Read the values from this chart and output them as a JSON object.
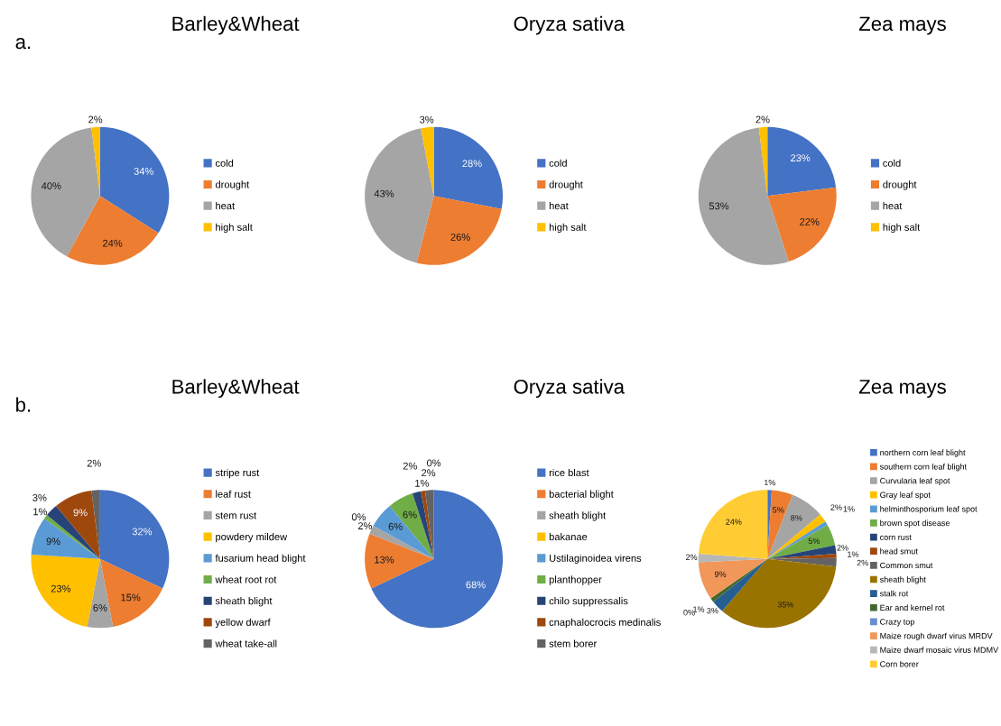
{
  "chart_data": [
    {
      "type": "pie",
      "title": "Barley&Wheat",
      "annotations": [
        "a."
      ],
      "categories": [
        "cold",
        "drought",
        "heat",
        "high salt"
      ],
      "values": [
        34,
        24,
        40,
        2
      ],
      "value_labels": [
        "34%",
        "24%",
        "40%",
        "2%"
      ],
      "colors": [
        "#4472c4",
        "#ed7d31",
        "#a5a5a5",
        "#ffc000"
      ],
      "legend": "right"
    },
    {
      "type": "pie",
      "title": "Oryza sativa",
      "categories": [
        "cold",
        "drought",
        "heat",
        "high salt"
      ],
      "values": [
        28,
        26,
        43,
        3
      ],
      "value_labels": [
        "28%",
        "26%",
        "43%",
        "3%"
      ],
      "colors": [
        "#4472c4",
        "#ed7d31",
        "#a5a5a5",
        "#ffc000"
      ],
      "legend": "right"
    },
    {
      "type": "pie",
      "title": "Zea mays",
      "categories": [
        "cold",
        "drought",
        "heat",
        "high salt"
      ],
      "values": [
        23,
        22,
        53,
        2
      ],
      "value_labels": [
        "23%",
        "22%",
        "53%",
        "2%"
      ],
      "colors": [
        "#4472c4",
        "#ed7d31",
        "#a5a5a5",
        "#ffc000"
      ],
      "legend": "right"
    },
    {
      "type": "pie",
      "title": "Barley&Wheat",
      "annotations": [
        "b."
      ],
      "categories": [
        "stripe rust",
        "leaf rust",
        "stem rust",
        "powdery mildew",
        "fusarium head blight",
        "wheat root rot",
        "sheath blight",
        "yellow dwarf",
        "wheat take-all"
      ],
      "values": [
        32,
        15,
        6,
        23,
        9,
        1,
        3,
        9,
        2
      ],
      "value_labels": [
        "32%",
        "15%",
        "6%",
        "23%",
        "9%",
        "1%",
        "3%",
        "9%",
        "2%"
      ],
      "colors": [
        "#4472c4",
        "#ed7d31",
        "#a5a5a5",
        "#ffc000",
        "#5b9bd5",
        "#70ad47",
        "#264478",
        "#9e480e",
        "#636363"
      ],
      "legend": "right"
    },
    {
      "type": "pie",
      "title": "Oryza sativa",
      "categories": [
        "rice blast",
        "bacterial blight",
        "sheath blight",
        "bakanae",
        "Ustilaginoidea virens",
        "planthopper",
        "chilo suppressalis",
        "cnaphalocrocis medinalis",
        "stem borer",
        null
      ],
      "values": [
        68,
        13,
        2,
        0,
        6,
        6,
        2,
        1,
        2,
        0
      ],
      "value_labels": [
        "68%",
        "13%",
        "2%",
        "0%",
        "6%",
        "6%",
        "2%",
        "1%",
        "2%",
        "0%"
      ],
      "colors": [
        "#4472c4",
        "#ed7d31",
        "#a5a5a5",
        "#ffc000",
        "#5b9bd5",
        "#70ad47",
        "#264478",
        "#9e480e",
        "#636363",
        "#997300"
      ],
      "legend": "right"
    },
    {
      "type": "pie",
      "title": "Zea mays",
      "categories": [
        "northern corn leaf blight",
        "southern corn leaf blight",
        "Curvularia leaf spot",
        "Gray leaf spot",
        "helminthosporium leaf spot",
        "brown spot disease",
        "corn rust",
        "head smut",
        "Common smut",
        "sheath blight",
        "stalk rot",
        "Ear and kernel rot",
        "Crazy top",
        "Maize rough dwarf virus MRDV",
        "Maize dwarf mosaic virus MDMV",
        "Corn borer"
      ],
      "values": [
        1,
        5,
        8,
        2,
        1,
        5,
        2,
        1,
        2,
        35,
        3,
        1,
        0,
        9,
        2,
        24
      ],
      "value_labels": [
        "1%",
        "5%",
        "8%",
        "2%",
        "1%",
        "5%",
        "2%",
        "1%",
        "2%",
        "35%",
        "3%",
        "1%",
        "0%",
        "9%",
        "2%",
        "24%"
      ],
      "colors": [
        "#4472c4",
        "#ed7d31",
        "#a5a5a5",
        "#ffc000",
        "#5b9bd5",
        "#70ad47",
        "#264478",
        "#9e480e",
        "#636363",
        "#997300",
        "#255e91",
        "#43682b",
        "#698ed0",
        "#f1975a",
        "#b7b7b7",
        "#ffcd33"
      ],
      "legend": "right"
    }
  ]
}
